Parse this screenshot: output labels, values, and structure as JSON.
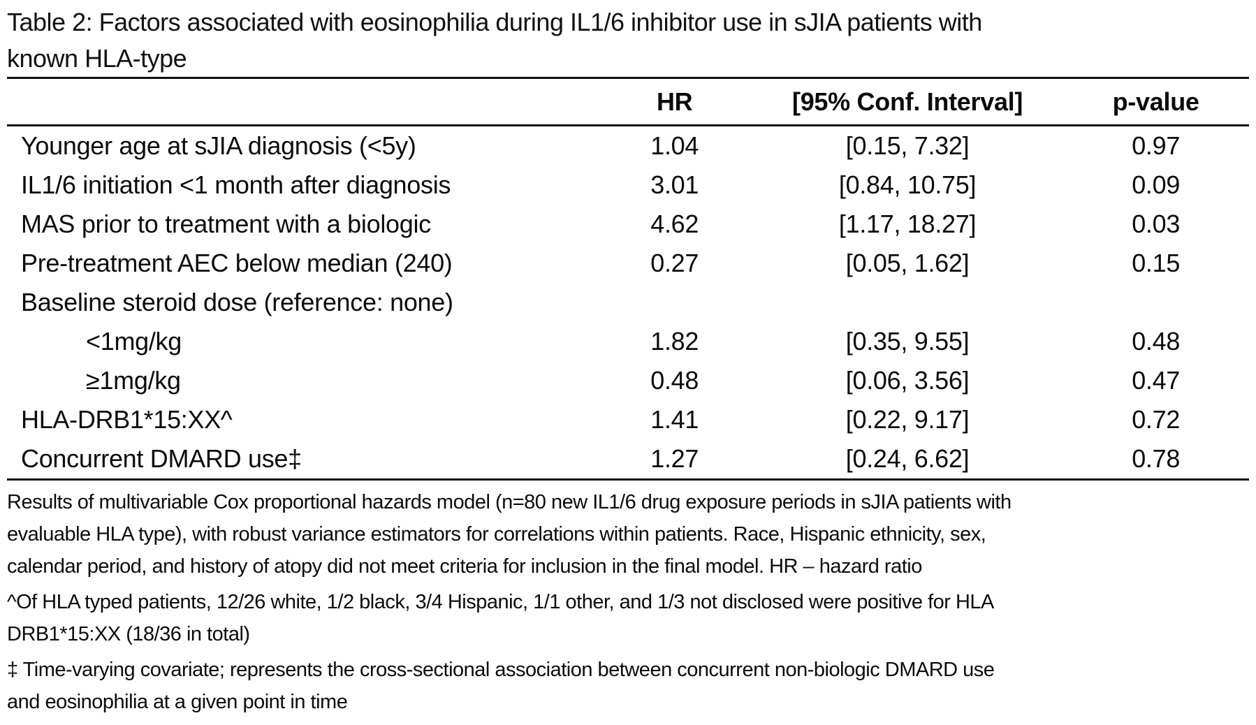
{
  "title": {
    "lines": [
      "Table 2: Factors associated with eosinophilia during IL1/6 inhibitor use in sJIA patients with",
      "known HLA-type"
    ]
  },
  "table": {
    "header": {
      "factor": "",
      "hr": "HR",
      "ci": "[95% Conf. Interval]",
      "p": "p-value"
    },
    "rows": [
      {
        "label": "Younger age at sJIA diagnosis (<5y)",
        "hr": "1.04",
        "ci": "[0.15, 7.32]",
        "p": "0.97"
      },
      {
        "label": "IL1/6 initiation <1 month after diagnosis",
        "hr": "3.01",
        "ci": "[0.84, 10.75]",
        "p": "0.09"
      },
      {
        "label": "MAS prior to treatment with a biologic",
        "hr": "4.62",
        "ci": "[1.17, 18.27]",
        "p": "0.03"
      },
      {
        "label": "Pre-treatment AEC below median (240)",
        "hr": "0.27",
        "ci": "[0.05, 1.62]",
        "p": "0.15"
      },
      {
        "label": "Baseline steroid dose (reference: none)",
        "hr": "",
        "ci": "",
        "p": ""
      },
      {
        "label": "<1mg/kg",
        "hr": "1.82",
        "ci": "[0.35, 9.55]",
        "p": "0.48"
      },
      {
        "label": "≥1mg/kg",
        "hr": "0.48",
        "ci": "[0.06, 3.56]",
        "p": "0.47"
      },
      {
        "label": "HLA-DRB1*15:XX^",
        "hr": "1.41",
        "ci": "[0.22, 9.17]",
        "p": "0.72"
      },
      {
        "label": "Concurrent DMARD use‡",
        "hr": "1.27",
        "ci": "[0.24, 6.62]",
        "p": "0.78"
      }
    ]
  },
  "footnotes": [
    {
      "lines": [
        "Results of multivariable Cox proportional hazards model (n=80 new IL1/6 drug exposure periods in sJIA patients with",
        "evaluable HLA type), with robust variance estimators for correlations within patients. Race, Hispanic ethnicity, sex,",
        "calendar period, and history of atopy did not meet criteria for inclusion in the final model. HR – hazard ratio"
      ]
    },
    {
      "lines": [
        "^Of HLA typed patients, 12/26 white, 1/2 black, 3/4 Hispanic, 1/1 other, and 1/3 not disclosed were positive for HLA",
        "DRB1*15:XX (18/36 in total)"
      ]
    },
    {
      "lines": [
        "‡ Time-varying covariate; represents the cross-sectional association between concurrent non-biologic DMARD use",
        "and eosinophilia at a given point in time"
      ]
    }
  ]
}
